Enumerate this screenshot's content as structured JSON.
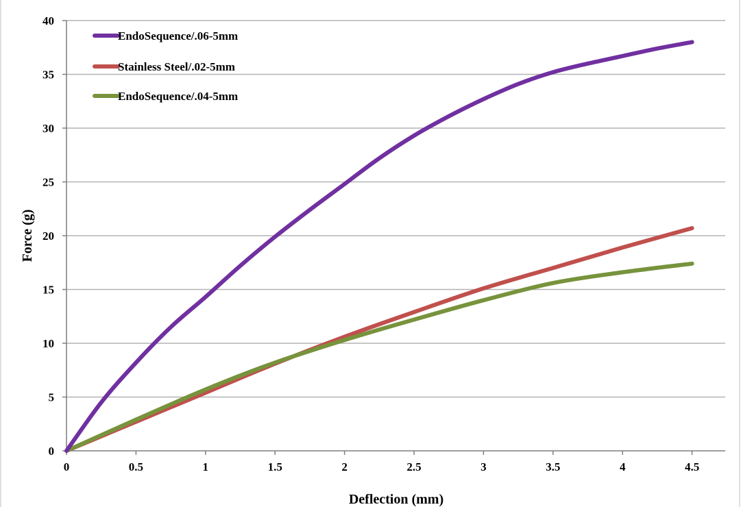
{
  "chart_data": {
    "type": "line",
    "title": "",
    "xlabel": "Deflection (mm)",
    "ylabel": "Force (g)",
    "xlim": [
      0,
      4.5
    ],
    "ylim": [
      0,
      40
    ],
    "x_ticks": [
      "0",
      "0.5",
      "1",
      "1.5",
      "2",
      "2.5",
      "3",
      "3.5",
      "4",
      "4.5"
    ],
    "y_ticks": [
      "0",
      "5",
      "10",
      "15",
      "20",
      "25",
      "30",
      "35",
      "40"
    ],
    "grid": "horizontal",
    "legend_position": "top-left",
    "series": [
      {
        "name": "EndoSequence/.06-5mm",
        "color": "#7030a0",
        "x": [
          0,
          0.25,
          0.5,
          0.75,
          1,
          1.25,
          1.5,
          1.75,
          2,
          2.25,
          2.5,
          2.75,
          3,
          3.25,
          3.5,
          3.75,
          4,
          4.25,
          4.5
        ],
        "y": [
          0,
          4.5,
          8.2,
          11.5,
          14.3,
          17.2,
          19.9,
          22.4,
          24.8,
          27.2,
          29.3,
          31.1,
          32.7,
          34.1,
          35.2,
          36,
          36.7,
          37.4,
          38
        ]
      },
      {
        "name": "Stainless Steel/.02-5mm",
        "color": "#c0504d",
        "x": [
          0,
          0.5,
          1,
          1.5,
          2,
          2.5,
          3,
          3.5,
          4,
          4.5
        ],
        "y": [
          0,
          2.7,
          5.4,
          8.1,
          10.6,
          12.9,
          15.1,
          17,
          18.9,
          20.7
        ]
      },
      {
        "name": "EndoSequence/.04-5mm",
        "color": "#77933c",
        "x": [
          0,
          0.5,
          1,
          1.5,
          2,
          2.5,
          3,
          3.5,
          4,
          4.5
        ],
        "y": [
          0,
          2.9,
          5.7,
          8.2,
          10.3,
          12.2,
          14,
          15.6,
          16.6,
          17.4
        ]
      }
    ]
  }
}
